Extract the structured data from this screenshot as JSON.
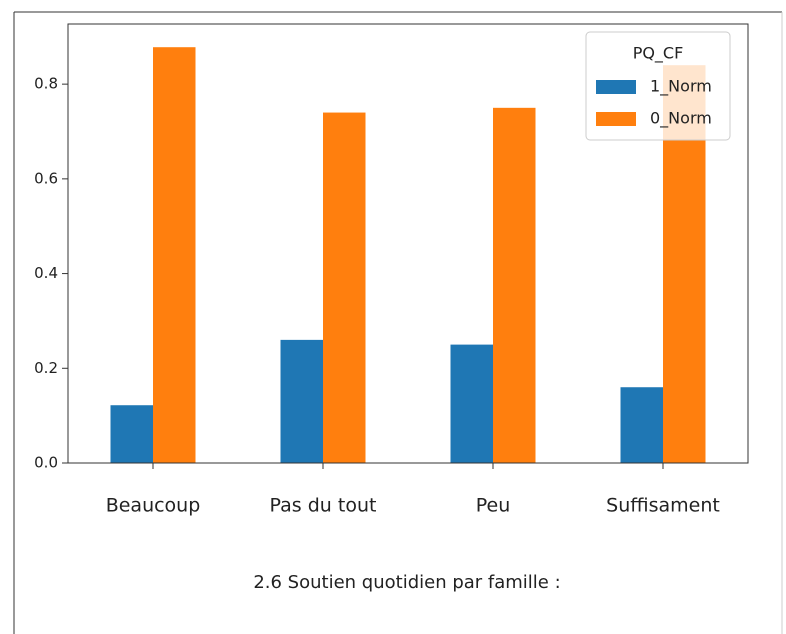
{
  "chart_data": {
    "type": "bar",
    "categories": [
      "Beaucoup",
      "Pas du tout",
      "Peu",
      "Suffisament"
    ],
    "series": [
      {
        "name": "1_Norm",
        "color": "#1f77b4",
        "values": [
          0.122,
          0.26,
          0.25,
          0.16
        ]
      },
      {
        "name": "0_Norm",
        "color": "#ff7f0e",
        "values": [
          0.878,
          0.74,
          0.75,
          0.84
        ]
      }
    ],
    "legend_title": "PQ_CF",
    "legend": "upper right",
    "ylim": [
      0,
      0.927
    ],
    "yticks": [
      {
        "value": 0,
        "label": "0.0"
      },
      0.2,
      0.4,
      0.6,
      0.8
    ],
    "grid": false,
    "caption": "2.6 Soutien quotidien par famille :"
  }
}
